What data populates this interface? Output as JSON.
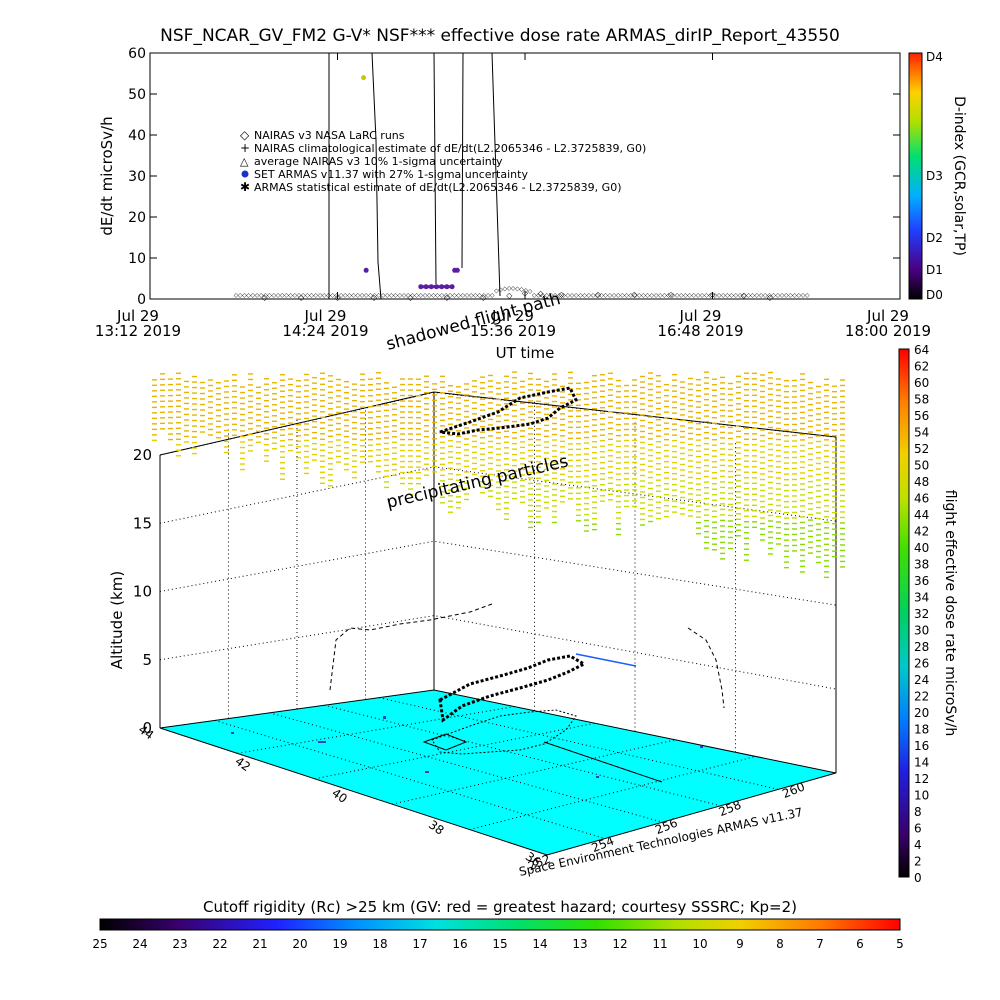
{
  "title": "NSF_NCAR_GV_FM2 G-V* NSF*** effective dose rate ARMAS_dirIP_Report_43550",
  "top_plot": {
    "ylabel": "dE/dt microSv/h",
    "xlabel": "UT time",
    "legend": [
      "NAIRAS v3 NASA LaRC runs",
      "NAIRAS climatological estimate of dE/dt(L2.2065346 - L2.3725839, G0)",
      "average NAIRAS v3 10% 1-sigma uncertainty",
      "SET ARMAS v11.37 with 27% 1-sigma uncertainty",
      "ARMAS statistical estimate of dE/dt(L2.2065346 - L2.3725839, G0)"
    ],
    "dindex": {
      "label": "D-index (GCR,solar,TP)",
      "ticks": [
        "D4",
        "D3",
        "D2",
        "D1",
        "D0"
      ]
    }
  },
  "bottom_plot": {
    "zlabel": "Altitude (km)",
    "annotations": [
      "shadowed flight path",
      "precipitating particles"
    ],
    "footer": "Space Environment Technologies ARMAS v11.37",
    "dose_colorbar": {
      "label": "flight effective dose rate microSv/h",
      "ticks": [
        "64",
        "62",
        "60",
        "58",
        "56",
        "54",
        "52",
        "50",
        "48",
        "46",
        "44",
        "42",
        "40",
        "38",
        "36",
        "34",
        "32",
        "30",
        "28",
        "26",
        "24",
        "22",
        "20",
        "18",
        "16",
        "14",
        "12",
        "10",
        "8",
        "6",
        "4",
        "2",
        "0"
      ]
    }
  },
  "cutoff_bar": {
    "label": "Cutoff rigidity (Rc) >25 km (GV: red = greatest hazard; courtesy SSSRC; Kp=2)",
    "ticks": [
      "25",
      "24",
      "23",
      "22",
      "21",
      "20",
      "19",
      "18",
      "17",
      "16",
      "15",
      "14",
      "13",
      "12",
      "11",
      "10",
      "9",
      "8",
      "7",
      "6",
      "5"
    ]
  },
  "colors": {
    "ground": "#00ffff",
    "flight": "#000000",
    "armas_point": "#5a1ea0",
    "nairas_point": "#c8c800"
  },
  "chart_data": [
    {
      "type": "scatter",
      "x_type": "time",
      "xlabel": "UT time",
      "ylabel": "dE/dt microSv/h",
      "ylim": [
        0,
        60
      ],
      "y_ticks": [
        0,
        10,
        20,
        30,
        40,
        50,
        60
      ],
      "x_ticks": [
        "Jul 29 13:12 2019",
        "Jul 29 14:24 2019",
        "Jul 29 15:36 2019",
        "Jul 29 16:48 2019",
        "Jul 29 18:00 2019"
      ],
      "series": [
        {
          "name": "NAIRAS v3 NASA LaRC runs",
          "x": [
            "13:56",
            "14:10",
            "14:24",
            "14:38",
            "14:52",
            "15:06",
            "15:20",
            "15:30",
            "15:36",
            "15:42",
            "15:50",
            "16:04",
            "16:18",
            "16:32",
            "16:48",
            "17:00",
            "17:10"
          ],
          "values": [
            0.5,
            0.5,
            0.5,
            0.5,
            0.5,
            0.5,
            0.5,
            1.0,
            1.6,
            1.5,
            1.2,
            1.2,
            1.2,
            1.2,
            1.2,
            1.0,
            0.5
          ]
        },
        {
          "name": "SET ARMAS v11.37 with 27% 1-sigma uncertainty",
          "x": [
            "14:34",
            "14:35",
            "14:56",
            "14:58",
            "15:00",
            "15:02",
            "15:04",
            "15:06",
            "15:08",
            "15:09",
            "15:10"
          ],
          "values": [
            54,
            7,
            3,
            3,
            3,
            3,
            3,
            3,
            3,
            7,
            7
          ]
        }
      ]
    },
    {
      "type": "colorbar",
      "label": "D-index (GCR,solar,TP)",
      "levels": [
        "D0",
        "D1",
        "D2",
        "D3",
        "D4"
      ]
    },
    {
      "type": "colorbar",
      "label": "flight effective dose rate microSv/h",
      "range": [
        0,
        64
      ]
    },
    {
      "type": "colorbar",
      "label": "Cutoff rigidity (Rc) >25 km (GV: red = greatest hazard; courtesy SSSRC; Kp=2)",
      "range": [
        25,
        5
      ]
    },
    {
      "type": "scatter",
      "zlabel": "Altitude (km)",
      "z_ticks": [
        0,
        5,
        10,
        15,
        20
      ],
      "x_ticks": [
        252,
        254,
        256,
        258,
        260
      ],
      "y_ticks": [
        36,
        38,
        40,
        42,
        44
      ]
    }
  ]
}
